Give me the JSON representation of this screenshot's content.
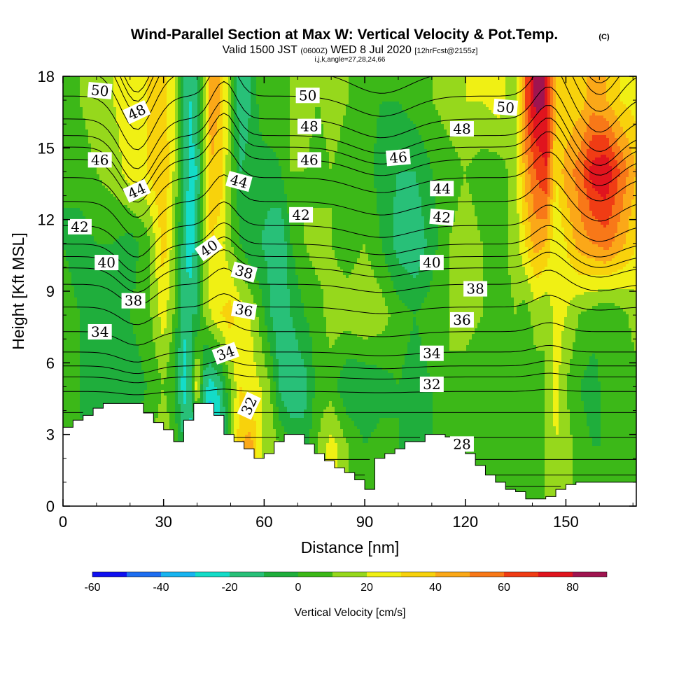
{
  "title": {
    "main": "Wind-Parallel Section at Max W: Vertical Velocity & Pot.Temp.",
    "copyright": "(C)",
    "valid": "Valid 1500 JST",
    "utc": "(0600Z)",
    "date": "WED 8 Jul 2020",
    "fcst": "[12hrFcst@2155z]",
    "params": "i,j,k,angle=27,28,24,66"
  },
  "chart_data": {
    "type": "heatmap",
    "title": "Wind-Parallel Section at Max W: Vertical Velocity & Pot.Temp.",
    "xlabel": "Distance [nm]",
    "ylabel": "Height [Kft MSL]",
    "xlim": [
      0,
      171
    ],
    "ylim": [
      0,
      18
    ],
    "x_ticks": [
      0,
      30,
      60,
      90,
      120,
      150
    ],
    "y_ticks": [
      0,
      3,
      6,
      9,
      12,
      15,
      18
    ],
    "colorbar": {
      "title": "Vertical Velocity [cm/s]",
      "labels": [
        -60,
        -40,
        -20,
        0,
        20,
        40,
        60,
        80
      ],
      "bounds": [
        -60,
        -50,
        -40,
        -30,
        -20,
        -10,
        0,
        10,
        20,
        30,
        40,
        50,
        60,
        70,
        80,
        90
      ],
      "colors": [
        "#1010f0",
        "#1e6ef0",
        "#18b4f0",
        "#14dcc8",
        "#28c078",
        "#1fae3c",
        "#3cb818",
        "#96d81c",
        "#f0f014",
        "#f8d20c",
        "#fba818",
        "#f87818",
        "#f03c14",
        "#e0141e",
        "#a01450"
      ]
    },
    "w_field": {
      "x_nodes": [
        0,
        5,
        10,
        15,
        20,
        25,
        30,
        33,
        36,
        38,
        40,
        42,
        44,
        47,
        50,
        53,
        56,
        59,
        62,
        65,
        68,
        72,
        76,
        80,
        85,
        90,
        95,
        100,
        105,
        110,
        115,
        120,
        125,
        130,
        135,
        138,
        141,
        144,
        147,
        150,
        154,
        158,
        162,
        166,
        171
      ],
      "y_nodes": [
        0,
        2.5,
        5,
        8,
        11,
        14,
        17,
        18
      ],
      "values": [
        [
          0,
          0,
          5,
          8,
          0,
          5,
          20,
          10,
          -10,
          -25,
          -30,
          -20,
          -50,
          -30,
          10,
          40,
          45,
          20,
          15,
          10,
          0,
          -5,
          10,
          25,
          10,
          0,
          5,
          0,
          -5,
          0,
          5,
          0,
          0,
          0,
          5,
          0,
          5,
          10,
          20,
          15,
          5,
          0,
          0,
          5,
          10
        ],
        [
          0,
          0,
          5,
          8,
          0,
          5,
          20,
          10,
          -10,
          -25,
          -30,
          -20,
          -50,
          -30,
          10,
          40,
          45,
          20,
          15,
          10,
          0,
          -5,
          10,
          25,
          10,
          0,
          5,
          0,
          -5,
          0,
          5,
          0,
          0,
          0,
          5,
          0,
          5,
          10,
          20,
          15,
          5,
          0,
          0,
          5,
          10
        ],
        [
          5,
          0,
          -5,
          -10,
          -5,
          0,
          10,
          0,
          -25,
          -15,
          30,
          -15,
          -25,
          -15,
          10,
          30,
          25,
          20,
          10,
          -15,
          -20,
          -15,
          5,
          5,
          -10,
          -10,
          -5,
          0,
          -5,
          0,
          10,
          5,
          0,
          0,
          5,
          0,
          5,
          10,
          25,
          10,
          0,
          -5,
          5,
          5,
          5
        ],
        [
          5,
          0,
          -5,
          -5,
          0,
          5,
          25,
          10,
          -20,
          -10,
          -10,
          10,
          20,
          30,
          35,
          25,
          20,
          5,
          -10,
          -20,
          -10,
          0,
          5,
          15,
          15,
          20,
          15,
          5,
          0,
          5,
          10,
          15,
          10,
          5,
          10,
          5,
          15,
          10,
          25,
          20,
          10,
          5,
          0,
          5,
          15
        ],
        [
          0,
          -5,
          0,
          0,
          -5,
          5,
          35,
          15,
          -15,
          -30,
          -10,
          10,
          30,
          25,
          10,
          0,
          -10,
          -10,
          -15,
          -20,
          0,
          10,
          15,
          10,
          5,
          10,
          0,
          -15,
          -20,
          -5,
          10,
          15,
          10,
          5,
          15,
          30,
          45,
          40,
          20,
          30,
          45,
          50,
          55,
          45,
          30
        ],
        [
          0,
          5,
          10,
          15,
          25,
          30,
          40,
          20,
          -10,
          -25,
          -20,
          10,
          40,
          35,
          10,
          -10,
          -5,
          -5,
          -5,
          0,
          10,
          10,
          5,
          10,
          5,
          5,
          -5,
          -10,
          -10,
          0,
          5,
          10,
          5,
          5,
          15,
          45,
          60,
          70,
          30,
          45,
          55,
          75,
          80,
          60,
          40
        ],
        [
          5,
          10,
          15,
          20,
          25,
          30,
          35,
          20,
          -10,
          -20,
          -10,
          10,
          45,
          40,
          10,
          -20,
          -10,
          5,
          10,
          5,
          10,
          15,
          10,
          15,
          10,
          5,
          0,
          0,
          5,
          10,
          15,
          20,
          20,
          25,
          10,
          60,
          85,
          80,
          40,
          30,
          35,
          45,
          40,
          30,
          25
        ],
        [
          5,
          10,
          15,
          20,
          25,
          30,
          35,
          20,
          -10,
          -20,
          -10,
          10,
          45,
          40,
          10,
          -20,
          -10,
          5,
          10,
          5,
          10,
          15,
          10,
          15,
          10,
          5,
          0,
          0,
          5,
          10,
          15,
          20,
          20,
          25,
          10,
          60,
          85,
          80,
          40,
          30,
          35,
          45,
          40,
          30,
          25
        ]
      ]
    },
    "terrain": {
      "x": [
        0,
        3,
        6,
        9,
        12,
        15,
        21,
        24,
        27,
        30,
        33,
        36,
        39,
        42,
        45,
        48,
        51,
        54,
        57,
        60,
        63,
        66,
        69,
        72,
        75,
        78,
        81,
        84,
        87,
        90,
        93,
        96,
        99,
        102,
        105,
        108,
        111,
        114,
        117,
        120,
        123,
        126,
        129,
        132,
        135,
        138,
        141,
        144,
        147,
        150,
        153,
        156,
        159,
        162,
        165,
        168,
        171
      ],
      "y": [
        3.3,
        3.6,
        3.8,
        4.1,
        4.3,
        4.3,
        4.3,
        3.9,
        3.5,
        3.2,
        2.7,
        3.6,
        4.3,
        4.3,
        3.8,
        3.0,
        2.7,
        2.4,
        2.0,
        2.2,
        2.7,
        3.0,
        3.0,
        2.6,
        2.2,
        1.9,
        1.6,
        1.4,
        1.1,
        0.7,
        2.0,
        2.2,
        2.4,
        2.7,
        2.7,
        3.0,
        3.0,
        2.9,
        2.6,
        2.2,
        1.7,
        1.3,
        1.0,
        0.7,
        0.6,
        0.3,
        0.3,
        0.4,
        0.7,
        0.9,
        1.0,
        1.0,
        1.0,
        1.0,
        1.0,
        1.0,
        1.0
      ]
    },
    "isentropes": {
      "start_values": [
        28,
        30,
        32,
        34,
        36,
        38,
        40,
        42,
        44,
        46,
        48,
        50,
        52,
        54
      ],
      "description": "potential temperature contours every 1 C",
      "labels": [
        {
          "text": "50",
          "x": 11,
          "y": 17.4,
          "angle": 5
        },
        {
          "text": "48",
          "x": 22,
          "y": 16.5,
          "angle": -25
        },
        {
          "text": "46",
          "x": 11,
          "y": 14.5,
          "angle": 0
        },
        {
          "text": "44",
          "x": 22,
          "y": 13.2,
          "angle": -25
        },
        {
          "text": "42",
          "x": 5,
          "y": 11.7,
          "angle": 0
        },
        {
          "text": "40",
          "x": 13,
          "y": 10.2,
          "angle": 0
        },
        {
          "text": "38",
          "x": 21,
          "y": 8.6,
          "angle": 0
        },
        {
          "text": "34",
          "x": 11,
          "y": 7.3,
          "angle": 0
        },
        {
          "text": "40",
          "x": 43.5,
          "y": 10.8,
          "angle": -35
        },
        {
          "text": "44",
          "x": 52.5,
          "y": 13.6,
          "angle": 15
        },
        {
          "text": "38",
          "x": 54,
          "y": 9.8,
          "angle": 15
        },
        {
          "text": "36",
          "x": 54,
          "y": 8.2,
          "angle": 10
        },
        {
          "text": "34",
          "x": 48.5,
          "y": 6.4,
          "angle": -20
        },
        {
          "text": "32",
          "x": 55.5,
          "y": 4.2,
          "angle": -65
        },
        {
          "text": "50",
          "x": 73,
          "y": 17.2,
          "angle": 0
        },
        {
          "text": "48",
          "x": 73.5,
          "y": 15.9,
          "angle": 0
        },
        {
          "text": "46",
          "x": 73.5,
          "y": 14.5,
          "angle": 0
        },
        {
          "text": "42",
          "x": 71,
          "y": 12.2,
          "angle": 0
        },
        {
          "text": "46",
          "x": 100,
          "y": 14.6,
          "angle": -5
        },
        {
          "text": "48",
          "x": 119,
          "y": 15.8,
          "angle": 0
        },
        {
          "text": "50",
          "x": 132,
          "y": 16.7,
          "angle": 5
        },
        {
          "text": "44",
          "x": 113,
          "y": 13.3,
          "angle": 0
        },
        {
          "text": "42",
          "x": 113,
          "y": 12.1,
          "angle": 5
        },
        {
          "text": "40",
          "x": 110,
          "y": 10.2,
          "angle": 0
        },
        {
          "text": "38",
          "x": 123,
          "y": 9.1,
          "angle": 0
        },
        {
          "text": "36",
          "x": 119,
          "y": 7.8,
          "angle": 0
        },
        {
          "text": "34",
          "x": 110,
          "y": 6.4,
          "angle": 0
        },
        {
          "text": "32",
          "x": 110,
          "y": 5.1,
          "angle": 0
        },
        {
          "text": "28",
          "x": 119,
          "y": 2.6,
          "angle": 0
        }
      ]
    }
  }
}
